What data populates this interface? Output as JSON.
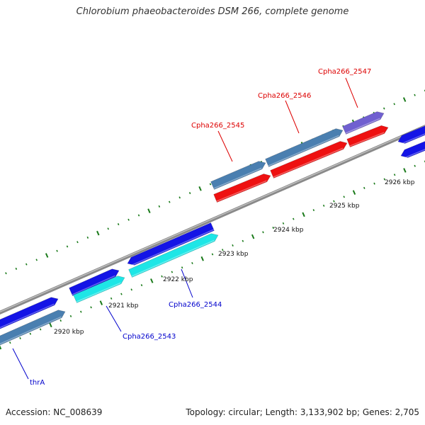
{
  "title": "Chlorobium phaeobacteroides DSM 266, complete genome",
  "footer": {
    "accession": "Accession: NC_008639",
    "summary": "Topology: circular; Length: 3,133,902 bp; Genes: 2,705"
  },
  "colors": {
    "backbone": "#8a8a8a",
    "tick": "#1a7a1a",
    "blue_gene": "#1414e6",
    "cyan_gene": "#1ee6e6",
    "red_gene": "#ee1111",
    "steel_gene": "#4a7fb0",
    "purple_gene": "#7060d0",
    "red_label": "#dd0000",
    "blue_label": "#0000cc"
  },
  "positions": [
    {
      "label": "2920 kbp"
    },
    {
      "label": "2921 kbp"
    },
    {
      "label": "2922 kbp"
    },
    {
      "label": "2923 kbp"
    },
    {
      "label": "2924 kbp"
    },
    {
      "label": "2925 kbp"
    },
    {
      "label": "2926 kbp"
    }
  ],
  "gene_labels": [
    {
      "name": "Cpha266_2547",
      "color": "red"
    },
    {
      "name": "Cpha266_2546",
      "color": "red"
    },
    {
      "name": "Cpha266_2545",
      "color": "red"
    },
    {
      "name": "Cpha266_2544",
      "color": "blue"
    },
    {
      "name": "Cpha266_2543",
      "color": "blue"
    },
    {
      "name": "thrA",
      "color": "blue"
    }
  ]
}
